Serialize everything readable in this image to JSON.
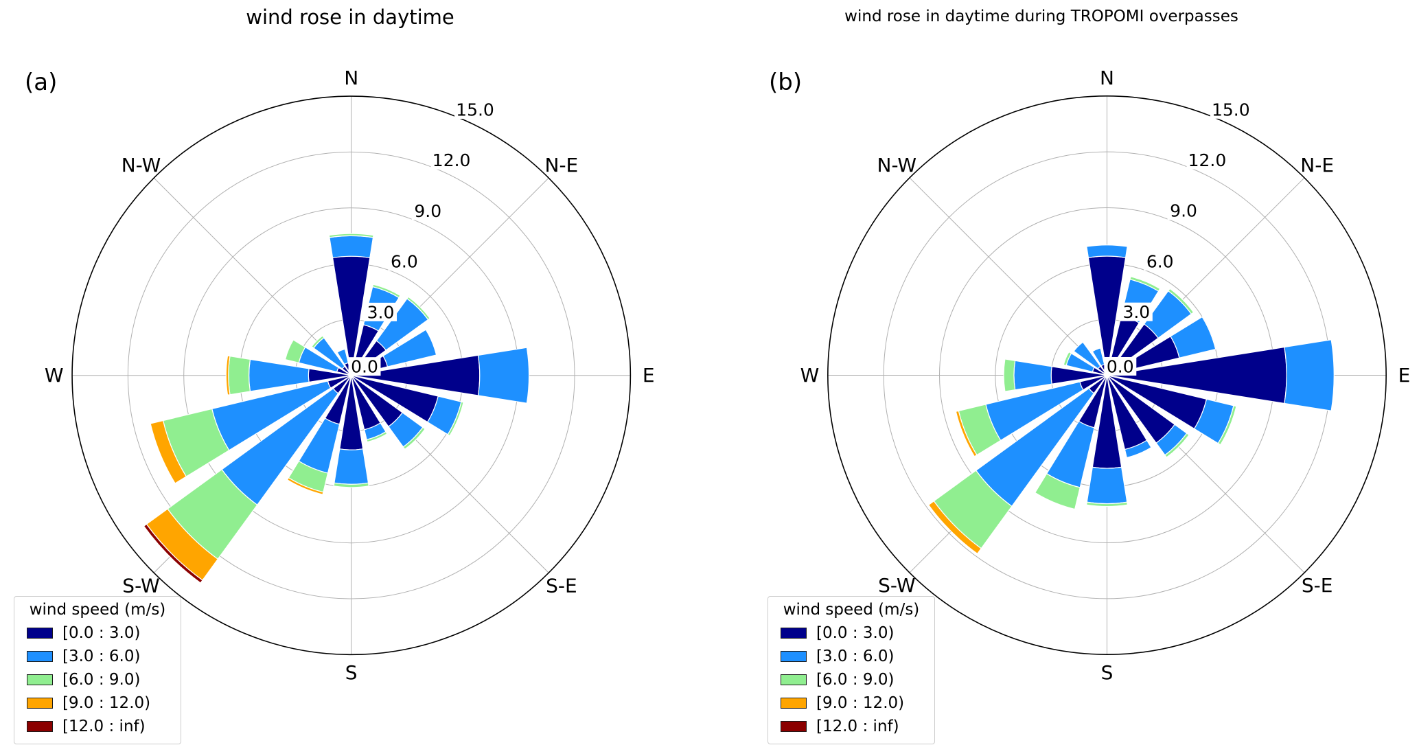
{
  "figure": {
    "background": "#ffffff"
  },
  "chart_data": [
    {
      "type": "windrose",
      "panel_label": "(a)",
      "title": "wind rose in daytime",
      "legend": {
        "title": "wind speed (m/s)"
      },
      "speed_bins": [
        {
          "label": "[0.0 : 3.0)",
          "color": "#00008B"
        },
        {
          "label": "[3.0 : 6.0)",
          "color": "#1E90FF"
        },
        {
          "label": "[6.0 : 9.0)",
          "color": "#90EE90"
        },
        {
          "label": "[9.0 : 12.0)",
          "color": "#FFA500"
        },
        {
          "label": "[12.0 : inf)",
          "color": "#8B0000"
        }
      ],
      "directions": [
        "N",
        "NNE",
        "NE",
        "ENE",
        "E",
        "ESE",
        "SE",
        "SSE",
        "S",
        "SSW",
        "SW",
        "WSW",
        "W",
        "WNW",
        "NW",
        "NNW"
      ],
      "direction_angles_deg": [
        0,
        22.5,
        45,
        67.5,
        90,
        112.5,
        135,
        157.5,
        180,
        202.5,
        225,
        247.5,
        270,
        292.5,
        315,
        337.5
      ],
      "compass_labels": [
        "N",
        "N-E",
        "E",
        "S-E",
        "S",
        "S-W",
        "W",
        "N-W"
      ],
      "r_ticks": {
        "values": [
          0,
          3,
          6,
          9,
          12,
          15
        ],
        "labels": [
          "0.0",
          "3.0",
          "6.0",
          "9.0",
          "12.0",
          "15.0"
        ]
      },
      "r_max": 15,
      "grid": {
        "spoke_step_deg": 45,
        "ring_color": "#b0b0b0",
        "outer_ring_color": "#000000"
      },
      "cumulative_radii_by_direction": [
        [
          6.4,
          7.5,
          7.62,
          null,
          null
        ],
        [
          2.8,
          4.9,
          5.03,
          null,
          null
        ],
        [
          2.3,
          5.1,
          5.22,
          null,
          null
        ],
        [
          2.0,
          4.7,
          null,
          null,
          null
        ],
        [
          6.9,
          9.55,
          null,
          null,
          null
        ],
        [
          4.8,
          6.08,
          6.2,
          null,
          null
        ],
        [
          3.4,
          4.75,
          4.9,
          null,
          null
        ],
        [
          3.0,
          3.55,
          3.68,
          null,
          null
        ],
        [
          4.0,
          5.85,
          6.02,
          null,
          null
        ],
        [
          2.7,
          5.4,
          6.45,
          6.58,
          null
        ],
        [
          1.2,
          8.6,
          12.2,
          13.6,
          13.78
        ],
        [
          1.3,
          7.7,
          10.4,
          11.1,
          null
        ],
        [
          2.3,
          5.5,
          6.6,
          6.73,
          null
        ],
        [
          0.8,
          2.9,
          3.65,
          null,
          null
        ],
        [
          0.6,
          2.5,
          2.63,
          null,
          null
        ],
        [
          0.7,
          1.45,
          null,
          null,
          null
        ]
      ]
    },
    {
      "type": "windrose",
      "panel_label": "(b)",
      "title": "wind rose in daytime during TROPOMI overpasses",
      "legend": {
        "title": "wind speed (m/s)"
      },
      "speed_bins": [
        {
          "label": "[0.0 : 3.0)",
          "color": "#00008B"
        },
        {
          "label": "[3.0 : 6.0)",
          "color": "#1E90FF"
        },
        {
          "label": "[6.0 : 9.0)",
          "color": "#90EE90"
        },
        {
          "label": "[9.0 : 12.0)",
          "color": "#FFA500"
        },
        {
          "label": "[12.0 : inf)",
          "color": "#8B0000"
        }
      ],
      "directions": [
        "N",
        "NNE",
        "NE",
        "ENE",
        "E",
        "ESE",
        "SE",
        "SSE",
        "S",
        "SSW",
        "SW",
        "WSW",
        "W",
        "WNW",
        "NW",
        "NNW"
      ],
      "direction_angles_deg": [
        0,
        22.5,
        45,
        67.5,
        90,
        112.5,
        135,
        157.5,
        180,
        202.5,
        225,
        247.5,
        270,
        292.5,
        315,
        337.5
      ],
      "compass_labels": [
        "N",
        "N-E",
        "E",
        "S-E",
        "S",
        "S-W",
        "W",
        "N-W"
      ],
      "r_ticks": {
        "values": [
          0,
          3,
          6,
          9,
          12,
          15
        ],
        "labels": [
          "0.0",
          "3.0",
          "6.0",
          "9.0",
          "12.0",
          "15.0"
        ]
      },
      "r_max": 15,
      "grid": {
        "spoke_step_deg": 45,
        "ring_color": "#b0b0b0",
        "outer_ring_color": "#000000"
      },
      "cumulative_radii_by_direction": [
        [
          6.4,
          7.0,
          null,
          null,
          null
        ],
        [
          3.3,
          5.3,
          5.45,
          null,
          null
        ],
        [
          3.4,
          5.6,
          5.75,
          null,
          null
        ],
        [
          4.0,
          6.0,
          null,
          null,
          null
        ],
        [
          9.65,
          12.2,
          null,
          null,
          null
        ],
        [
          5.5,
          7.0,
          7.15,
          null,
          null
        ],
        [
          4.5,
          5.3,
          5.45,
          null,
          null
        ],
        [
          4.1,
          4.55,
          null,
          null,
          null
        ],
        [
          5.0,
          6.9,
          7.05,
          null,
          null
        ],
        [
          2.9,
          6.2,
          7.4,
          null,
          null
        ],
        [
          1.2,
          8.7,
          11.5,
          11.85,
          null
        ],
        [
          1.5,
          6.7,
          8.2,
          8.35,
          null
        ],
        [
          3.0,
          5.0,
          5.55,
          null,
          null
        ],
        [
          0.8,
          2.25,
          2.4,
          null,
          null
        ],
        [
          0.6,
          2.2,
          null,
          null,
          null
        ],
        [
          0.6,
          1.5,
          null,
          null,
          null
        ]
      ]
    }
  ]
}
